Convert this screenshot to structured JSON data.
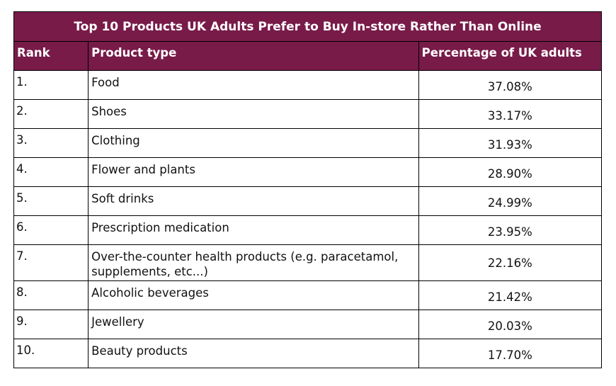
{
  "chart_data": {
    "type": "table",
    "title": "Top 10 Products UK Adults Prefer to Buy In-store Rather Than Online",
    "columns": [
      "Rank",
      "Product type",
      "Percentage of UK adults"
    ],
    "rows": [
      {
        "rank": "1.",
        "product": "Food",
        "percentage": "37.08%"
      },
      {
        "rank": "2.",
        "product": "Shoes",
        "percentage": "33.17%"
      },
      {
        "rank": "3.",
        "product": "Clothing",
        "percentage": "31.93%"
      },
      {
        "rank": "4.",
        "product": "Flower and plants",
        "percentage": "28.90%"
      },
      {
        "rank": "5.",
        "product": "Soft drinks",
        "percentage": "24.99%"
      },
      {
        "rank": "6.",
        "product": "Prescription medication",
        "percentage": "23.95%"
      },
      {
        "rank": "7.",
        "product": "Over-the-counter health products (e.g. paracetamol, supplements, etc...)",
        "percentage": "22.16%"
      },
      {
        "rank": "8.",
        "product": "Alcoholic beverages",
        "percentage": "21.42%"
      },
      {
        "rank": "9.",
        "product": "Jewellery",
        "percentage": "20.03%"
      },
      {
        "rank": "10.",
        "product": "Beauty products",
        "percentage": "17.70%"
      }
    ],
    "values": [
      37.08,
      33.17,
      31.93,
      28.9,
      24.99,
      23.95,
      22.16,
      21.42,
      20.03,
      17.7
    ]
  },
  "colors": {
    "header_background": "#781b49",
    "header_text": "#ffffff",
    "border": "#000000"
  }
}
